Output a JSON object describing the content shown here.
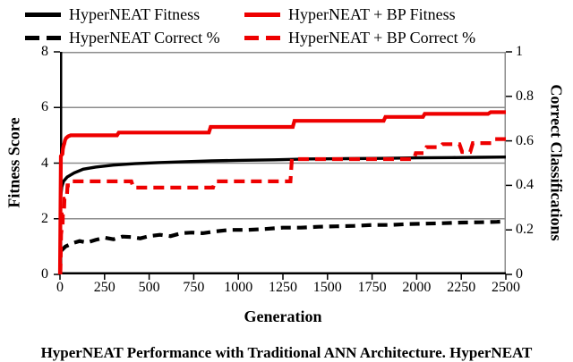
{
  "legend": [
    {
      "label": "HyperNEAT Fitness",
      "color": "#000000",
      "dashed": false
    },
    {
      "label": "HyperNEAT Correct %",
      "color": "#000000",
      "dashed": true
    },
    {
      "label": "HyperNEAT + BP Fitness",
      "color": "#ee0000",
      "dashed": false
    },
    {
      "label": "HyperNEAT + BP Correct %",
      "color": "#ee0000",
      "dashed": true
    }
  ],
  "caption": "HyperNEAT Performance with Traditional ANN Architecture. HyperNEAT",
  "colors": {
    "black_series": "#000000",
    "red_series": "#ee0000",
    "grid": "#8c8c8c",
    "axis": "#000000"
  },
  "chart_data": {
    "type": "line",
    "x_label": "Generation",
    "x_min": 0,
    "x_max": 2500,
    "x_ticks": [
      "0",
      "250",
      "500",
      "750",
      "1000",
      "1250",
      "1500",
      "1750",
      "2000",
      "2250",
      "2500"
    ],
    "y_left": {
      "label": "Fitness Score",
      "min": 0,
      "max": 8,
      "ticks": [
        "0",
        "2",
        "4",
        "6",
        "8"
      ]
    },
    "y_right": {
      "label": "Correct Classifications",
      "min": 0,
      "max": 1,
      "ticks": [
        "0",
        "0.2",
        "0.4",
        "0.6",
        "0.8",
        "1"
      ]
    },
    "grid_values_left": [
      2,
      4,
      6
    ],
    "legend_position": "top",
    "series": [
      {
        "name": "HyperNEAT Fitness",
        "axis": "left",
        "color": "#000000",
        "dash": null,
        "width": 3.4,
        "points": [
          [
            0,
            0
          ],
          [
            4,
            2.8
          ],
          [
            10,
            3.15
          ],
          [
            20,
            3.35
          ],
          [
            40,
            3.5
          ],
          [
            80,
            3.65
          ],
          [
            130,
            3.78
          ],
          [
            200,
            3.86
          ],
          [
            300,
            3.93
          ],
          [
            420,
            3.98
          ],
          [
            550,
            4.02
          ],
          [
            700,
            4.05
          ],
          [
            850,
            4.08
          ],
          [
            1000,
            4.1
          ],
          [
            1200,
            4.12
          ],
          [
            1400,
            4.15
          ],
          [
            1600,
            4.16
          ],
          [
            1800,
            4.17
          ],
          [
            2000,
            4.19
          ],
          [
            2200,
            4.2
          ],
          [
            2350,
            4.21
          ],
          [
            2500,
            4.22
          ]
        ]
      },
      {
        "name": "HyperNEAT Correct %",
        "axis": "right",
        "color": "#000000",
        "dash": "11,7",
        "width": 4.2,
        "points": [
          [
            5,
            0.105
          ],
          [
            30,
            0.125
          ],
          [
            70,
            0.14
          ],
          [
            110,
            0.15
          ],
          [
            150,
            0.143
          ],
          [
            200,
            0.155
          ],
          [
            250,
            0.165
          ],
          [
            300,
            0.158
          ],
          [
            350,
            0.17
          ],
          [
            400,
            0.168
          ],
          [
            450,
            0.162
          ],
          [
            500,
            0.172
          ],
          [
            560,
            0.178
          ],
          [
            620,
            0.172
          ],
          [
            680,
            0.185
          ],
          [
            740,
            0.188
          ],
          [
            800,
            0.185
          ],
          [
            870,
            0.193
          ],
          [
            950,
            0.2
          ],
          [
            1050,
            0.2
          ],
          [
            1150,
            0.204
          ],
          [
            1250,
            0.21
          ],
          [
            1350,
            0.21
          ],
          [
            1450,
            0.214
          ],
          [
            1550,
            0.216
          ],
          [
            1650,
            0.218
          ],
          [
            1750,
            0.222
          ],
          [
            1850,
            0.222
          ],
          [
            1950,
            0.226
          ],
          [
            2050,
            0.228
          ],
          [
            2150,
            0.23
          ],
          [
            2250,
            0.233
          ],
          [
            2350,
            0.234
          ],
          [
            2450,
            0.236
          ],
          [
            2500,
            0.238
          ]
        ]
      },
      {
        "name": "HyperNEAT + BP Fitness",
        "axis": "left",
        "color": "#ee0000",
        "dash": null,
        "width": 4.2,
        "points": [
          [
            0,
            0
          ],
          [
            5,
            4.25
          ],
          [
            10,
            4.3
          ],
          [
            14,
            4.33
          ],
          [
            16,
            4.5
          ],
          [
            20,
            4.62
          ],
          [
            24,
            4.7
          ],
          [
            28,
            4.82
          ],
          [
            34,
            4.9
          ],
          [
            45,
            4.96
          ],
          [
            60,
            5.0
          ],
          [
            320,
            5.0
          ],
          [
            330,
            5.1
          ],
          [
            835,
            5.1
          ],
          [
            845,
            5.3
          ],
          [
            1305,
            5.3
          ],
          [
            1315,
            5.52
          ],
          [
            1815,
            5.52
          ],
          [
            1825,
            5.66
          ],
          [
            2035,
            5.66
          ],
          [
            2045,
            5.77
          ],
          [
            2400,
            5.77
          ],
          [
            2415,
            5.83
          ],
          [
            2500,
            5.83
          ]
        ]
      },
      {
        "name": "HyperNEAT + BP Correct %",
        "axis": "right",
        "color": "#ee0000",
        "dash": "12,7",
        "width": 4.2,
        "points": [
          [
            2,
            0
          ],
          [
            4,
            0.07
          ],
          [
            6,
            0.18
          ],
          [
            9,
            0.2
          ],
          [
            14,
            0.2
          ],
          [
            16,
            0.27
          ],
          [
            22,
            0.27
          ],
          [
            25,
            0.34
          ],
          [
            38,
            0.34
          ],
          [
            42,
            0.4
          ],
          [
            55,
            0.4
          ],
          [
            60,
            0.418
          ],
          [
            400,
            0.418
          ],
          [
            412,
            0.39
          ],
          [
            858,
            0.39
          ],
          [
            870,
            0.418
          ],
          [
            1292,
            0.418
          ],
          [
            1300,
            0.518
          ],
          [
            1985,
            0.518
          ],
          [
            1995,
            0.545
          ],
          [
            2040,
            0.545
          ],
          [
            2055,
            0.572
          ],
          [
            2130,
            0.572
          ],
          [
            2145,
            0.585
          ],
          [
            2240,
            0.585
          ],
          [
            2255,
            0.55
          ],
          [
            2300,
            0.55
          ],
          [
            2315,
            0.59
          ],
          [
            2420,
            0.59
          ],
          [
            2435,
            0.608
          ],
          [
            2500,
            0.608
          ]
        ]
      }
    ]
  }
}
